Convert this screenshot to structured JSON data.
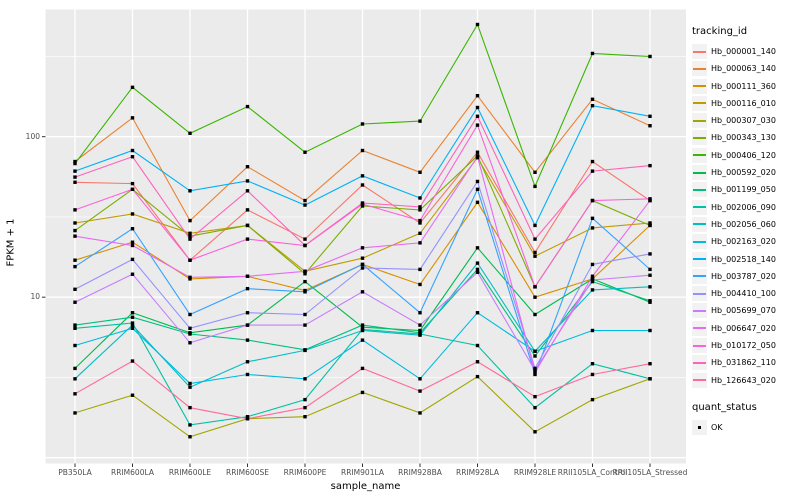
{
  "chart_data": {
    "type": "line",
    "title": "",
    "xlabel": "sample_name",
    "ylabel": "FPKM + 1",
    "y_scale": "log10",
    "y_tick_labels": [
      "100",
      "10"
    ],
    "y_tick_values": [
      100,
      10
    ],
    "y_major_gridlines": [
      1,
      10,
      100
    ],
    "y_minor_gridlines": [
      3.162,
      31.62,
      316.2
    ],
    "y_domain": [
      0.92,
      620
    ],
    "grid_color": "#FFFFFF",
    "panel_bg": "#EBEBEB",
    "point_shape": "filled-square",
    "point_color": "#000000",
    "categories": [
      "PB350LA",
      "RRIM600LA",
      "RRIM600LE",
      "RRIM600SE",
      "RRIM600PE",
      "RRIM901LA",
      "RRIM928BA",
      "RRIM928LA",
      "RRIM928LE",
      "RRII105LA_Control",
      "RRII105LA_Stressed"
    ],
    "series": [
      {
        "name": "Hb_000001_140",
        "color": "#F8766D",
        "values": [
          52,
          51,
          17,
          35,
          23,
          50,
          29,
          80,
          19,
          70,
          40
        ]
      },
      {
        "name": "Hb_000063_140",
        "color": "#EA8331",
        "values": [
          70,
          131,
          30,
          65,
          40,
          82,
          60,
          180,
          60,
          171,
          117
        ]
      },
      {
        "name": "Hb_000111_360",
        "color": "#D89000",
        "values": [
          17,
          22,
          13,
          13.5,
          11,
          16,
          12,
          39,
          10,
          13,
          28
        ]
      },
      {
        "name": "Hb_000116_010",
        "color": "#C09B00",
        "values": [
          29,
          33,
          25,
          28,
          14.5,
          17.5,
          25,
          74,
          18,
          27,
          29
        ]
      },
      {
        "name": "Hb_000307_030",
        "color": "#A3A500",
        "values": [
          1.9,
          2.45,
          1.35,
          1.75,
          1.8,
          2.55,
          1.9,
          3.2,
          1.45,
          2.3,
          3.1
        ]
      },
      {
        "name": "Hb_000343_130",
        "color": "#7CAE00",
        "values": [
          26,
          47,
          24,
          28,
          14,
          37,
          35,
          76,
          11.6,
          40,
          28
        ]
      },
      {
        "name": "Hb_000406_120",
        "color": "#39B600",
        "values": [
          68,
          203,
          105,
          154,
          80,
          120,
          125,
          500,
          49,
          330,
          316
        ]
      },
      {
        "name": "Hb_000592_020",
        "color": "#00BB4E",
        "values": [
          3.6,
          8,
          6,
          6.7,
          12.5,
          6.5,
          6.2,
          20.3,
          7.8,
          13,
          9.3
        ]
      },
      {
        "name": "Hb_001199_050",
        "color": "#00BF7D",
        "values": [
          6.7,
          7.5,
          5.9,
          5.4,
          4.7,
          6.7,
          6,
          14.9,
          4.3,
          12.5,
          9.5
        ]
      },
      {
        "name": "Hb_002006_090",
        "color": "#00C1A3",
        "values": [
          6.4,
          6.9,
          1.6,
          1.8,
          2.3,
          6.3,
          5.9,
          5,
          2.05,
          3.85,
          3.1
        ]
      },
      {
        "name": "Hb_002056_060",
        "color": "#00BFC4",
        "values": [
          3.1,
          6.7,
          2.75,
          3.96,
          4.66,
          6.2,
          5.8,
          16.3,
          4.6,
          11.1,
          11.6
        ]
      },
      {
        "name": "Hb_002163_020",
        "color": "#00BAE0",
        "values": [
          5,
          6.4,
          2.9,
          3.3,
          3.1,
          5.4,
          3.1,
          8,
          4.6,
          6.2,
          6.2
        ]
      },
      {
        "name": "Hb_002518_140",
        "color": "#00B0F6",
        "values": [
          61,
          82,
          46,
          53,
          37.5,
          57,
          41.5,
          152,
          28,
          156,
          134
        ]
      },
      {
        "name": "Hb_003787_020",
        "color": "#35A2FF",
        "values": [
          15.5,
          26.7,
          7.8,
          11.3,
          10.8,
          16,
          8,
          47,
          3.3,
          31,
          14.9
        ]
      },
      {
        "name": "Hb_004410_100",
        "color": "#9590FF",
        "values": [
          11.2,
          17.2,
          6.4,
          8,
          7.8,
          15.2,
          14.9,
          52.6,
          3.6,
          16,
          18.6
        ]
      },
      {
        "name": "Hb_005699_070",
        "color": "#C77CFF",
        "values": [
          9.3,
          13.9,
          5.2,
          6.7,
          6.7,
          10.8,
          6.7,
          14.3,
          3.5,
          12.8,
          13.7
        ]
      },
      {
        "name": "Hb_006647_020",
        "color": "#E76BF3",
        "values": [
          24,
          21,
          13.3,
          13.5,
          14.5,
          20.3,
          21.8,
          75,
          3.4,
          13.5,
          40
        ]
      },
      {
        "name": "Hb_010172_050",
        "color": "#FA62DB",
        "values": [
          35,
          47,
          17,
          23,
          21,
          38,
          30,
          118,
          11.6,
          40,
          41
        ]
      },
      {
        "name": "Hb_031862_110",
        "color": "#FF62BC",
        "values": [
          56,
          75,
          23,
          46,
          21,
          38.6,
          36.5,
          134,
          23,
          61,
          66
        ]
      },
      {
        "name": "Hb_126643_020",
        "color": "#FF6A98",
        "values": [
          2.5,
          4,
          2.05,
          1.75,
          2.05,
          3.6,
          2.6,
          3.96,
          2.4,
          3.3,
          3.85
        ]
      }
    ]
  },
  "legend": {
    "tracking_title": "tracking_id",
    "quant_title": "quant_status",
    "quant_items": [
      "OK"
    ]
  }
}
